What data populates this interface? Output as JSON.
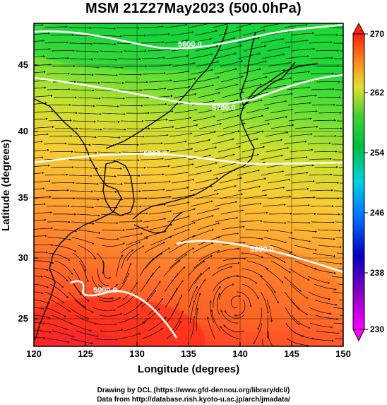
{
  "title": "MSM 21Z27May2023 (500.0hPa)",
  "x_axis": {
    "label": "Longitude (degrees)",
    "ticks": [
      "120",
      "125",
      "130",
      "135",
      "140",
      "145",
      "150"
    ]
  },
  "y_axis": {
    "label": "Latitude  (degrees)",
    "ticks": [
      "25",
      "30",
      "35",
      "40",
      "45"
    ]
  },
  "colorbar": {
    "ticks": [
      "230",
      "238",
      "246",
      "254",
      "262",
      "270"
    ]
  },
  "contour_labels": [
    "5600.0",
    "5700.0",
    "5800.0",
    "5900.0",
    "5900.0"
  ],
  "footer": {
    "line1": "Drawing by DCL (https://www.gfd-dennou.org/library/dcl/)",
    "line2": "Data from http://database.rish.kyoto-u.ac.jp/arch/jmadata/"
  },
  "colors": {
    "warm": "#ff3a2a",
    "mid": "#f6d534",
    "cool": "#22d838",
    "contour": "#ffffff",
    "streamline": "#000000"
  }
}
